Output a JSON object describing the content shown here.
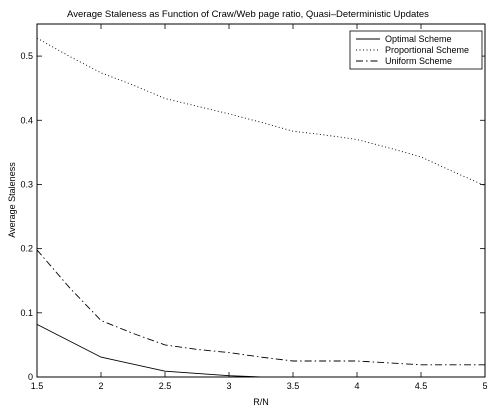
{
  "chart_data": {
    "type": "line",
    "title": "Average Staleness as Function of Craw/Web page ratio, Quasi–Deterministic Updates",
    "xlabel": "R/N",
    "ylabel": "Average Staleness",
    "xlim": [
      1.5,
      5
    ],
    "ylim": [
      0,
      0.55
    ],
    "xticks": [
      "1.5",
      "2",
      "2.5",
      "3",
      "3.5",
      "4",
      "4.5",
      "5"
    ],
    "yticks": [
      "0",
      "0.1",
      "0.2",
      "0.3",
      "0.4",
      "0.5"
    ],
    "grid": false,
    "legend_position": "top-right",
    "series": [
      {
        "name": "Optimal Scheme",
        "linestyle": "solid",
        "x": [
          1.5,
          2.0,
          2.5,
          3.0,
          3.25
        ],
        "y": [
          0.082,
          0.031,
          0.009,
          0.002,
          0.0
        ]
      },
      {
        "name": "Proportional Scheme",
        "linestyle": "dotted",
        "x": [
          1.5,
          1.75,
          2.0,
          2.25,
          2.5,
          2.75,
          3.0,
          3.25,
          3.5,
          3.75,
          4.0,
          4.25,
          4.5,
          4.75,
          5.0
        ],
        "y": [
          0.528,
          0.5,
          0.474,
          0.455,
          0.434,
          0.422,
          0.41,
          0.397,
          0.383,
          0.377,
          0.37,
          0.357,
          0.343,
          0.32,
          0.298
        ]
      },
      {
        "name": "Uniform Scheme",
        "linestyle": "dashdot",
        "x": [
          1.5,
          1.75,
          2.0,
          2.25,
          2.5,
          2.75,
          3.0,
          3.25,
          3.5,
          3.75,
          4.0,
          4.25,
          4.5,
          4.75,
          5.0
        ],
        "y": [
          0.198,
          0.14,
          0.088,
          0.068,
          0.05,
          0.043,
          0.038,
          0.031,
          0.025,
          0.025,
          0.025,
          0.022,
          0.019,
          0.019,
          0.019
        ]
      }
    ]
  }
}
